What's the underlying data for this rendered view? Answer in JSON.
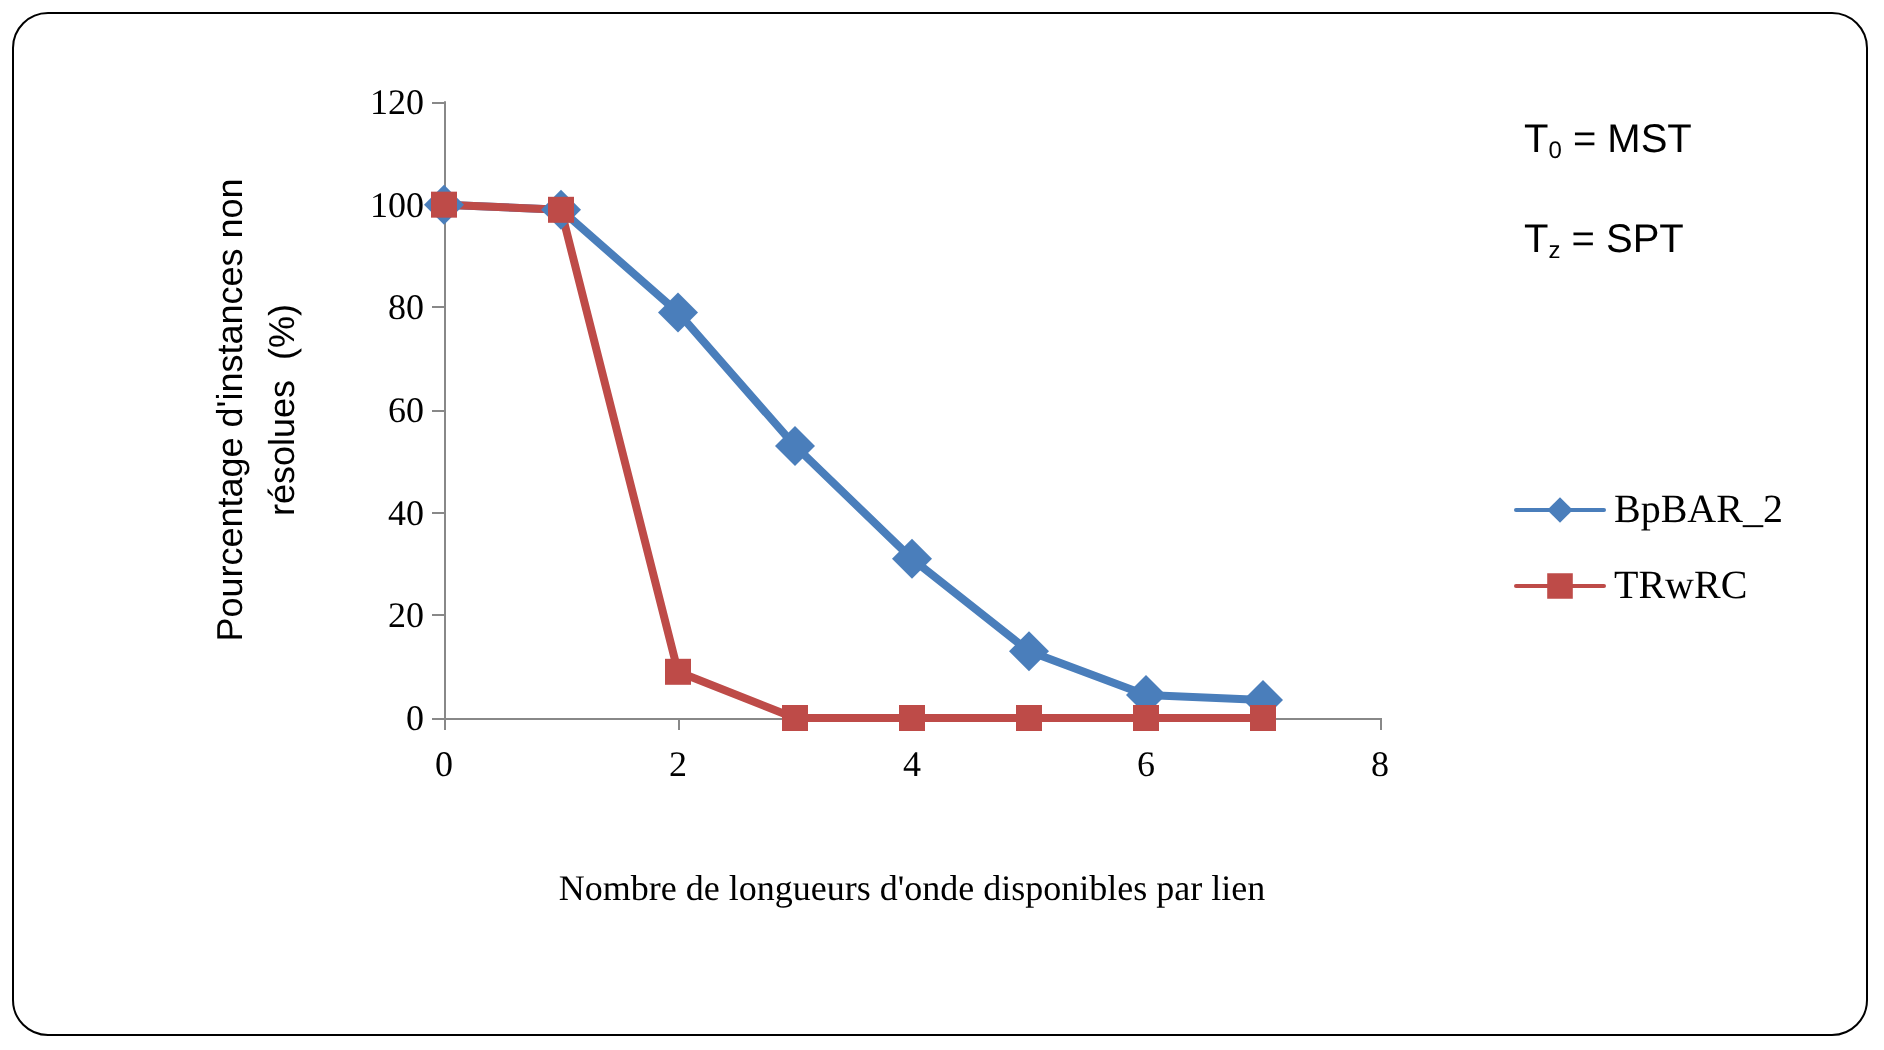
{
  "chart_data": {
    "type": "line",
    "xlabel": "Nombre de longueurs d'onde disponibles par lien",
    "ylabel": "Pourcentage d'instances non\nrésolues  (%)",
    "x": [
      0,
      1,
      2,
      3,
      4,
      5,
      6,
      7
    ],
    "series": [
      {
        "name": "BpBAR_2",
        "color": "#4a7ebb",
        "marker": "diamond",
        "values": [
          100,
          99,
          79,
          53,
          31,
          13,
          4.5,
          3.5
        ]
      },
      {
        "name": "TRwRC",
        "color": "#be4b48",
        "marker": "square",
        "values": [
          100,
          99,
          9,
          0,
          0,
          0,
          0,
          0
        ]
      }
    ],
    "xlim": [
      0,
      8
    ],
    "xticks": [
      0,
      2,
      4,
      6,
      8
    ],
    "ylim": [
      0,
      120
    ],
    "yticks": [
      0,
      20,
      40,
      60,
      80,
      100,
      120
    ],
    "grid": false,
    "legend": "right",
    "line_style": "solid",
    "annotations": [
      "T$_{0}$ = MST",
      "T$_{z}$ = SPT"
    ]
  }
}
